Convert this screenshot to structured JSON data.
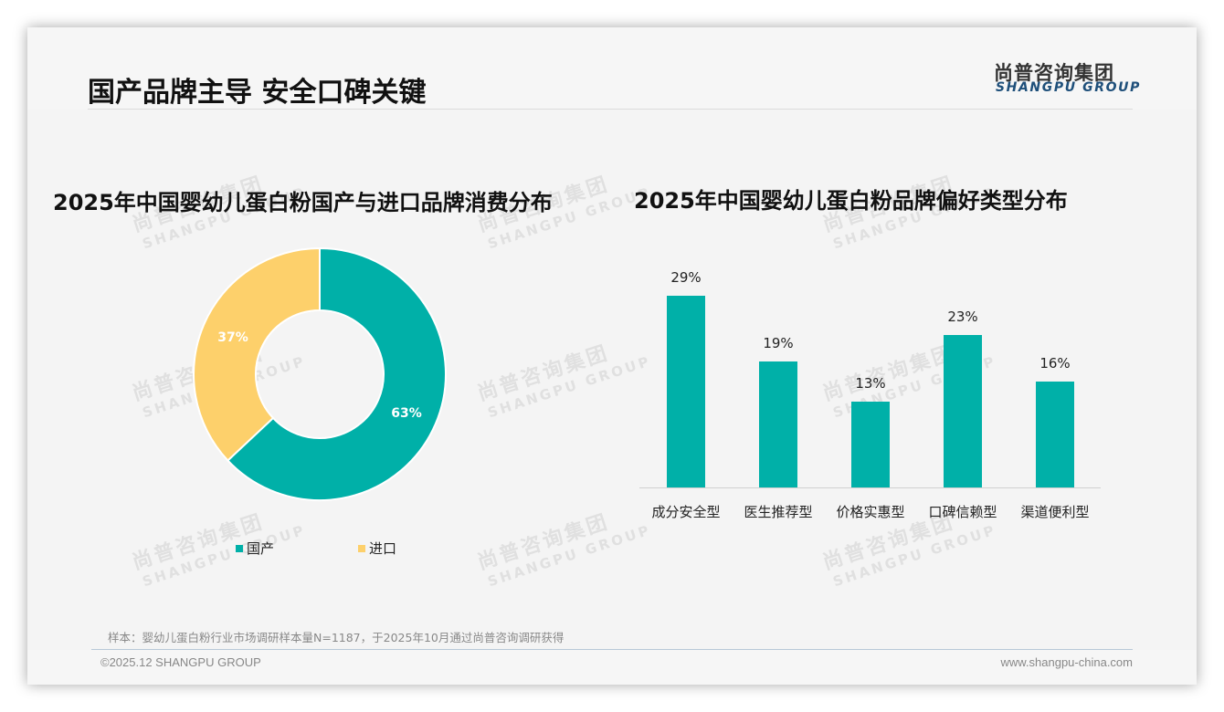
{
  "header": {
    "title": "国产品牌主导 安全口碑关键",
    "logo_cn": "尚普咨询集团",
    "logo_en": "SHANGPU GROUP"
  },
  "watermark": {
    "cn": "尚普咨询集团",
    "en": "SHANGPU GROUP"
  },
  "left_chart": {
    "title": "2025年中国婴幼儿蛋白粉国产与进口品牌消费分布",
    "legend": [
      {
        "label": "国产",
        "color": "#00b0a8"
      },
      {
        "label": "进口",
        "color": "#fdd06b"
      }
    ],
    "labels": {
      "domestic": "63%",
      "imported": "37%"
    }
  },
  "right_chart": {
    "title": "2025年中国婴幼儿蛋白粉品牌偏好类型分布",
    "bars": [
      {
        "category": "成分安全型",
        "label": "29%",
        "value": 29
      },
      {
        "category": "医生推荐型",
        "label": "19%",
        "value": 19
      },
      {
        "category": "价格实惠型",
        "label": "13%",
        "value": 13
      },
      {
        "category": "口碑信赖型",
        "label": "23%",
        "value": 23
      },
      {
        "category": "渠道便利型",
        "label": "16%",
        "value": 16
      }
    ],
    "bar_color": "#00b0a8"
  },
  "footer": {
    "note": "样本：婴幼儿蛋白粉行业市场调研样本量N=1187，于2025年10月通过尚普咨询调研获得",
    "copyright": "©2025.12 SHANGPU GROUP",
    "website": "www.shangpu-china.com"
  },
  "chart_data": [
    {
      "type": "pie",
      "title": "2025年中国婴幼儿蛋白粉国产与进口品牌消费分布",
      "categories": [
        "国产",
        "进口"
      ],
      "values": [
        63,
        37
      ],
      "colors": [
        "#00b0a8",
        "#fdd06b"
      ],
      "donut": true,
      "legend_position": "bottom",
      "unit": "%"
    },
    {
      "type": "bar",
      "title": "2025年中国婴幼儿蛋白粉品牌偏好类型分布",
      "categories": [
        "成分安全型",
        "医生推荐型",
        "价格实惠型",
        "口碑信赖型",
        "渠道便利型"
      ],
      "values": [
        29,
        19,
        13,
        23,
        16
      ],
      "xlabel": "",
      "ylabel": "",
      "ylim": [
        0,
        30
      ],
      "grid": false,
      "data_labels": [
        "29%",
        "19%",
        "13%",
        "23%",
        "16%"
      ],
      "unit": "%"
    }
  ]
}
